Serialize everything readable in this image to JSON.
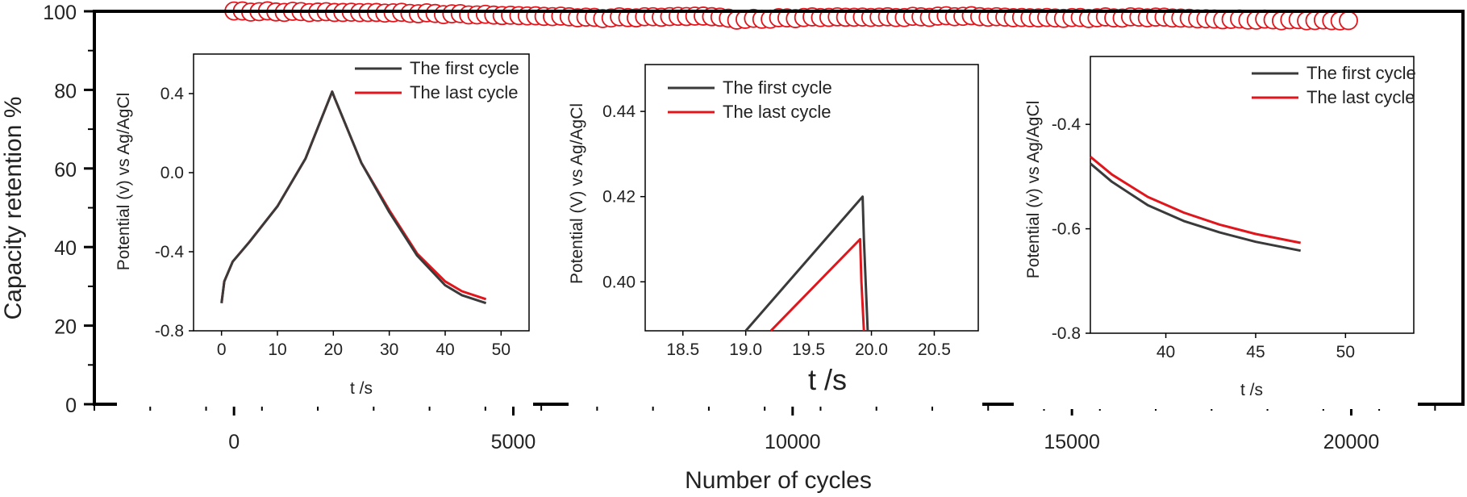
{
  "colors": {
    "first": "#3a3a3a",
    "last": "#e0161c",
    "axis": "#000000"
  },
  "chart_data": [
    {
      "type": "scatter",
      "name": "main",
      "title": "",
      "xlabel": "Number of cycles",
      "ylabel": "Capacity retention  %",
      "xlim": [
        -2500,
        22000
      ],
      "ylim": [
        0,
        100
      ],
      "xticks": [
        0,
        5000,
        10000,
        15000,
        20000
      ],
      "xticklabels": [
        "0",
        "5000",
        "10000",
        "15000",
        "20000"
      ],
      "yticks": [
        0,
        20,
        40,
        60,
        80,
        100
      ],
      "yticklabels": [
        "0",
        "20",
        "40",
        "60",
        "80",
        "100"
      ],
      "marker": "open-circle",
      "series": [
        {
          "name": "Capacity retention",
          "knots": [
            [
              0,
              100
            ],
            [
              3000,
              99.6
            ],
            [
              6000,
              98.6
            ],
            [
              6500,
              98.3
            ],
            [
              8500,
              98.8
            ],
            [
              9000,
              97.9
            ],
            [
              10500,
              98.5
            ],
            [
              12000,
              98.5
            ],
            [
              13000,
              98.8
            ],
            [
              14000,
              98.4
            ],
            [
              15000,
              98.3
            ],
            [
              16500,
              98.5
            ],
            [
              17500,
              98.0
            ],
            [
              18000,
              97.9
            ],
            [
              20000,
              97.6
            ]
          ]
        }
      ]
    },
    {
      "type": "line",
      "name": "inset1",
      "xlabel": "t /s",
      "ylabel": "Potential (v) vs Ag/AgCl",
      "xlim": [
        -5,
        55
      ],
      "ylim": [
        -0.8,
        0.6
      ],
      "xticks": [
        0,
        10,
        20,
        30,
        40,
        50
      ],
      "xticklabels": [
        "0",
        "10",
        "20",
        "30",
        "40",
        "50"
      ],
      "yticks": [
        -0.8,
        -0.4,
        0.0,
        0.4
      ],
      "yticklabels": [
        "-0.8",
        "-0.4",
        "0.0",
        "0.4"
      ],
      "legend": [
        "The first cycle",
        "The last cycle"
      ],
      "legend_position": "top-right",
      "series": [
        {
          "name": "The first cycle",
          "x": [
            0,
            0.5,
            2,
            5,
            10,
            15,
            19.8,
            20.2,
            25,
            30,
            35,
            40,
            43,
            47.3
          ],
          "y": [
            -0.66,
            -0.55,
            -0.45,
            -0.35,
            -0.17,
            0.07,
            0.41,
            0.38,
            0.05,
            -0.2,
            -0.42,
            -0.57,
            -0.62,
            -0.66
          ]
        },
        {
          "name": "The last cycle",
          "x": [
            0,
            0.5,
            2,
            5,
            10,
            15,
            19.8,
            20.2,
            25,
            30,
            35,
            40,
            43,
            47.3
          ],
          "y": [
            -0.66,
            -0.55,
            -0.45,
            -0.35,
            -0.17,
            0.07,
            0.41,
            0.38,
            0.05,
            -0.19,
            -0.41,
            -0.55,
            -0.6,
            -0.64
          ]
        }
      ]
    },
    {
      "type": "line",
      "name": "inset2",
      "xlabel": "t /s",
      "ylabel": "Potential (V) vs Ag/AgCl",
      "xlim": [
        18.2,
        20.85
      ],
      "ylim": [
        0.3885,
        0.451
      ],
      "xticks": [
        18.5,
        19.0,
        19.5,
        20.0,
        20.5
      ],
      "xticklabels": [
        "18.5",
        "19.0",
        "19.5",
        "20.0",
        "20.5"
      ],
      "yticks": [
        0.4,
        0.42,
        0.44
      ],
      "yticklabels": [
        "0.40",
        "0.42",
        "0.44"
      ],
      "legend": [
        "The first cycle",
        "The last cycle"
      ],
      "legend_position": "top-left",
      "series": [
        {
          "name": "The first cycle",
          "x": [
            19.0,
            19.93,
            19.94,
            19.97
          ],
          "y": [
            0.3885,
            0.42,
            0.41,
            0.3885
          ]
        },
        {
          "name": "The last cycle",
          "x": [
            19.2,
            19.91,
            19.92,
            19.94
          ],
          "y": [
            0.3885,
            0.41,
            0.4,
            0.3885
          ]
        }
      ]
    },
    {
      "type": "line",
      "name": "inset3",
      "xlabel": "t /s",
      "ylabel": "Potential (v) vs Ag/AgCl",
      "xlim": [
        35.8,
        53.8
      ],
      "ylim": [
        -0.8,
        -0.27
      ],
      "xticks": [
        40,
        45,
        50
      ],
      "xticklabels": [
        "40",
        "45",
        "50"
      ],
      "yticks": [
        -0.8,
        -0.6,
        -0.4
      ],
      "yticklabels": [
        "-0.8",
        "-0.6",
        "-0.4"
      ],
      "legend": [
        "The first cycle",
        "The last cycle"
      ],
      "legend_position": "top-right",
      "series": [
        {
          "name": "The first cycle",
          "x": [
            35.8,
            37,
            39,
            41,
            43,
            45,
            47.5
          ],
          "y": [
            -0.475,
            -0.51,
            -0.555,
            -0.585,
            -0.607,
            -0.625,
            -0.642
          ]
        },
        {
          "name": "The last cycle",
          "x": [
            35.8,
            37,
            39,
            41,
            43,
            45,
            47.5
          ],
          "y": [
            -0.462,
            -0.496,
            -0.539,
            -0.569,
            -0.592,
            -0.61,
            -0.627
          ]
        }
      ]
    }
  ]
}
